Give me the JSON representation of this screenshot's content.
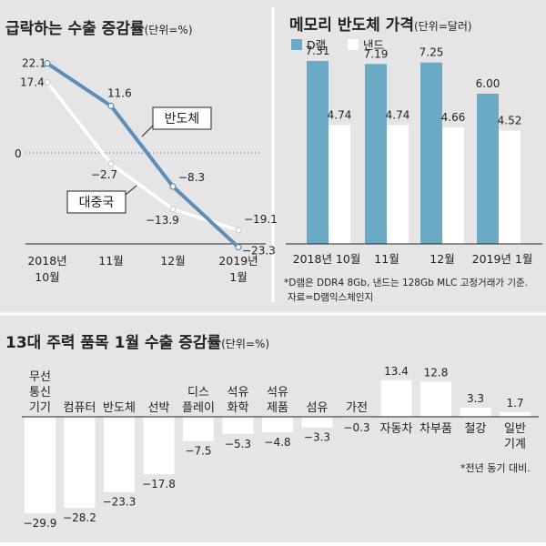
{
  "colors": {
    "background": "#e5e5e5",
    "line_blue": "#5b8fb9",
    "line_white": "#ffffff",
    "bar_blue": "#6aaac4",
    "bar_white": "#ffffff",
    "bar_gray": "#c9c9c9",
    "text": "#222222"
  },
  "chart_data": [
    {
      "type": "line",
      "title": "급락하는 수출 증감률",
      "unit": "(단위=%)",
      "x_labels": [
        [
          "2018년",
          "10월"
        ],
        [
          "11월"
        ],
        [
          "12월"
        ],
        [
          "2019년",
          "1월"
        ]
      ],
      "series": [
        {
          "name": "반도체",
          "values": [
            22.1,
            11.6,
            -8.3,
            -23.3
          ],
          "labels": [
            "22.1",
            "11.6",
            "−8.3",
            "−23.3"
          ]
        },
        {
          "name": "대중국",
          "values": [
            17.4,
            -2.7,
            -13.9,
            -19.1
          ],
          "labels": [
            "17.4",
            "−2.7",
            "−13.9",
            "−19.1"
          ]
        }
      ],
      "zero_label": "0",
      "ylim": [
        -25,
        25
      ]
    },
    {
      "type": "bar",
      "title": "메모리 반도체 가격",
      "unit": "(단위=달러)",
      "legend": [
        "D램",
        "낸드"
      ],
      "categories": [
        "2018년 10월",
        "11월",
        "12월",
        "2019년 1월"
      ],
      "series": [
        {
          "name": "D램",
          "values": [
            7.31,
            7.19,
            7.25,
            6.0
          ],
          "labels": [
            "7.31",
            "7.19",
            "7.25",
            "6.00"
          ]
        },
        {
          "name": "낸드",
          "values": [
            4.74,
            4.74,
            4.66,
            4.52
          ],
          "labels": [
            "4.74",
            "4.74",
            "4.66",
            "4.52"
          ]
        }
      ],
      "footnote": "*D램은 DDR4 8Gb, 낸드는 128Gb MLC 고정거래가 기준.",
      "source": "자료=D램익스체인지"
    },
    {
      "type": "bar",
      "title": "13대 주력 품목 1월 수출 증감률",
      "unit": "(단위=%)",
      "categories": [
        [
          "무선",
          "통신",
          "기기"
        ],
        [
          "컴퓨터"
        ],
        [
          "반도체"
        ],
        [
          "선박"
        ],
        [
          "디스",
          "플레이"
        ],
        [
          "석유",
          "화학"
        ],
        [
          "석유",
          "제품"
        ],
        [
          "섬유"
        ],
        [
          "가전"
        ],
        [
          "자동차"
        ],
        [
          "차부품"
        ],
        [
          "철강"
        ],
        [
          "일반",
          "기계"
        ]
      ],
      "values": [
        -29.9,
        -28.2,
        -23.3,
        -17.8,
        -7.5,
        -5.3,
        -4.8,
        -3.3,
        -0.3,
        13.4,
        12.8,
        3.3,
        1.7
      ],
      "value_labels": [
        "−29.9",
        "−28.2",
        "−23.3",
        "−17.8",
        "−7.5",
        "−5.3",
        "−4.8",
        "−3.3",
        "−0.3",
        "13.4",
        "12.8",
        "3.3",
        "1.7"
      ],
      "footnote": "*전년 동기 대비."
    }
  ]
}
